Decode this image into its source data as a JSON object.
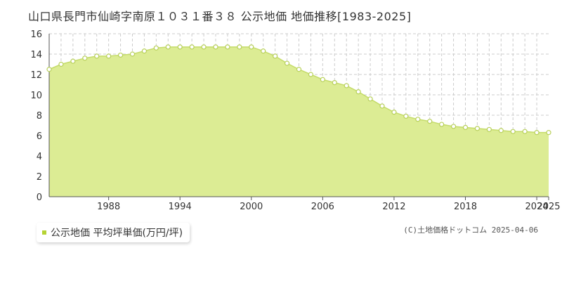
{
  "title": "山口県長門市仙崎字南原１０３１番３８ 公示地価 地価推移[1983-2025]",
  "credit": "(C)土地価格ドットコム 2025-04-06",
  "colors": {
    "fill": "#dcec94",
    "line": "#c5dc6a",
    "marker_fill": "#ffffff",
    "marker_stroke": "#b8d05a",
    "grid": "#cccccc",
    "legend_swatch": "#b5d334"
  },
  "chart_data": {
    "type": "area",
    "title": "山口県長門市仙崎字南原１０３１番３８ 公示地価 地価推移[1983-2025]",
    "xlim": [
      1983,
      2025
    ],
    "ylim": [
      0,
      16
    ],
    "y_ticks": [
      0,
      2,
      4,
      6,
      8,
      10,
      12,
      14,
      16
    ],
    "x_tick_labels": [
      "1988",
      "1994",
      "2000",
      "2006",
      "2012",
      "2018",
      "2024",
      "2025"
    ],
    "x_tick_values": [
      1988,
      1994,
      2000,
      2006,
      2012,
      2018,
      2024,
      2025
    ],
    "grid": true,
    "legend_position": "bottom-left",
    "series": [
      {
        "name": "公示地価 平均坪単価(万円/坪)",
        "x": [
          1983,
          1984,
          1985,
          1986,
          1987,
          1988,
          1989,
          1990,
          1991,
          1992,
          1993,
          1994,
          1995,
          1996,
          1997,
          1998,
          1999,
          2000,
          2001,
          2002,
          2003,
          2004,
          2005,
          2006,
          2007,
          2008,
          2009,
          2010,
          2011,
          2012,
          2013,
          2014,
          2015,
          2016,
          2017,
          2018,
          2019,
          2020,
          2021,
          2022,
          2023,
          2024,
          2025
        ],
        "values": [
          12.5,
          13.0,
          13.3,
          13.6,
          13.8,
          13.8,
          13.9,
          14.0,
          14.3,
          14.6,
          14.7,
          14.7,
          14.7,
          14.7,
          14.7,
          14.7,
          14.7,
          14.7,
          14.3,
          13.8,
          13.1,
          12.5,
          12.0,
          11.5,
          11.2,
          10.9,
          10.3,
          9.6,
          8.9,
          8.3,
          7.9,
          7.6,
          7.4,
          7.1,
          6.9,
          6.8,
          6.7,
          6.6,
          6.5,
          6.4,
          6.4,
          6.3,
          6.3
        ]
      }
    ]
  }
}
